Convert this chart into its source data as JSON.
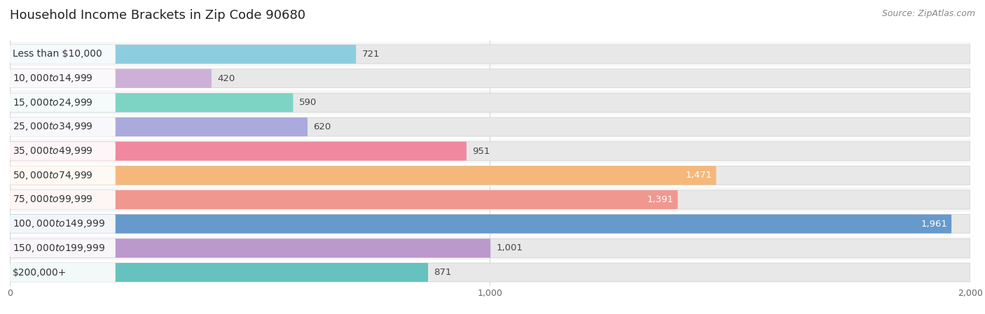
{
  "title": "Household Income Brackets in Zip Code 90680",
  "source": "Source: ZipAtlas.com",
  "categories": [
    "Less than $10,000",
    "$10,000 to $14,999",
    "$15,000 to $24,999",
    "$25,000 to $34,999",
    "$35,000 to $49,999",
    "$50,000 to $74,999",
    "$75,000 to $99,999",
    "$100,000 to $149,999",
    "$150,000 to $199,999",
    "$200,000+"
  ],
  "values": [
    721,
    420,
    590,
    620,
    951,
    1471,
    1391,
    1961,
    1001,
    871
  ],
  "bar_colors": [
    "#8DCDE0",
    "#CCB0D8",
    "#7DD4C5",
    "#AAAADD",
    "#F088A0",
    "#F5B87A",
    "#F09890",
    "#6699CC",
    "#BB99CC",
    "#66C2BF"
  ],
  "label_inside_bar": [
    true,
    true,
    true,
    true,
    true,
    true,
    true,
    true,
    true,
    true
  ],
  "value_label_inside": [
    false,
    false,
    false,
    false,
    false,
    true,
    true,
    true,
    false,
    false
  ],
  "xlim_data": [
    0,
    2000
  ],
  "background_color": "#ffffff",
  "bar_bg_color": "#e8e8e8",
  "row_bg_even": "#f7f7f7",
  "row_bg_odd": "#ffffff",
  "title_fontsize": 13,
  "label_fontsize": 10,
  "value_fontsize": 9.5,
  "source_fontsize": 9,
  "bar_height": 0.78,
  "fig_width": 14.06,
  "fig_height": 4.49
}
